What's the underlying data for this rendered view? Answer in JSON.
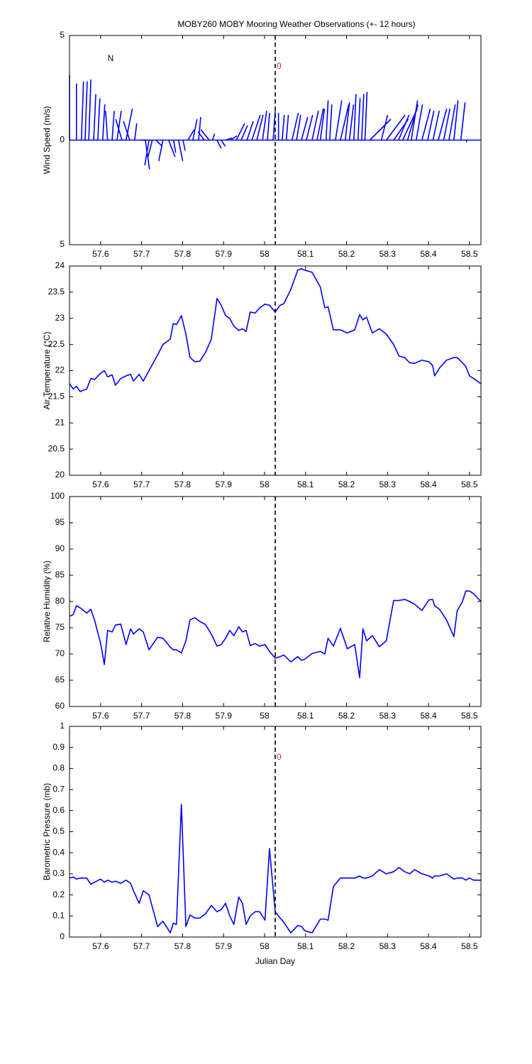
{
  "chart_data": [
    {
      "type": "stick",
      "title": "MOBY260 MOBY Mooring Weather Observations (+- 12 hours)",
      "ylabel": "Wind Speed (m/s)",
      "north_label": "N",
      "marker_label": "0",
      "vline": 58.026,
      "color": "#0000ff",
      "xlim": [
        57.524,
        58.528
      ],
      "xticks": [
        57.6,
        57.7,
        57.8,
        57.9,
        58,
        58.1,
        58.2,
        58.3,
        58.4,
        58.5
      ],
      "ylim": [
        -5,
        5
      ],
      "yticks": [
        {
          "value": -5,
          "label": "5"
        },
        0,
        5
      ],
      "x": [
        57.524,
        57.541,
        57.553,
        57.562,
        57.571,
        57.583,
        57.593,
        57.605,
        57.617,
        57.628,
        57.64,
        57.652,
        57.662,
        57.671,
        57.683,
        57.697,
        57.709,
        57.718,
        57.726,
        57.735,
        57.752,
        57.766,
        57.778,
        57.79,
        57.801,
        57.813,
        57.825,
        57.839,
        57.853,
        57.865,
        57.873,
        57.884,
        57.894,
        57.905,
        57.917,
        57.931,
        57.943,
        57.957,
        57.969,
        57.981,
        57.995,
        58.007,
        58.021,
        58.034,
        58.043,
        58.053,
        58.067,
        58.078,
        58.09,
        58.102,
        58.116,
        58.128,
        58.136,
        58.15,
        58.159,
        58.173,
        58.185,
        58.197,
        58.207,
        58.218,
        58.228,
        58.237,
        58.245,
        58.257,
        58.285,
        58.297,
        58.315,
        58.327,
        58.337,
        58.349,
        58.358,
        58.37,
        58.384,
        58.398,
        58.411,
        58.424,
        58.437,
        58.45,
        58.462,
        58.479,
        58.493
      ],
      "u": [
        0,
        0,
        0.1,
        0.1,
        0.1,
        0.1,
        0.1,
        0.1,
        -0.1,
        0.1,
        0.2,
        -0.3,
        0.3,
        -0.3,
        0.1,
        0.3,
        0.2,
        -0.2,
        -0.2,
        0.3,
        -0.2,
        0.3,
        0.1,
        0.2,
        0.1,
        0.3,
        0.2,
        0.1,
        -0.3,
        -0.4,
        0.1,
        0.2,
        0.2,
        0.3,
        0.3,
        0.4,
        0.3,
        0.3,
        0.4,
        0.3,
        0.2,
        0.1,
        0.1,
        0,
        0.1,
        0.1,
        0.3,
        0.2,
        0.3,
        0.3,
        0.3,
        0.3,
        0.2,
        0.1,
        0.1,
        0.3,
        0.4,
        0.2,
        0.2,
        0.1,
        0.1,
        0.1,
        0.1,
        1.0,
        0.3,
        0.9,
        0.7,
        0.5,
        0.7,
        0.5,
        0.3,
        0.3,
        0.4,
        0.3,
        0.3,
        0.4,
        0.3,
        0.3,
        0.2,
        0.2,
        0
      ],
      "v": [
        3.1,
        2.7,
        2.8,
        2.8,
        2.9,
        2.2,
        2.0,
        1.7,
        1.4,
        1.4,
        1.4,
        1.0,
        1.5,
        0.9,
        0.8,
        0,
        -1.4,
        -1.2,
        -0.8,
        -0.3,
        -1.0,
        -0.8,
        -0.6,
        -1.0,
        -0.5,
        0.5,
        1.0,
        1.1,
        0.4,
        0.5,
        0.3,
        -0.4,
        -0.3,
        0.1,
        0.2,
        0.8,
        0.7,
        0.9,
        1.2,
        1.2,
        1.4,
        1.3,
        1.4,
        1.3,
        1.2,
        1.2,
        1.3,
        1.2,
        1.1,
        1.2,
        1.4,
        1.5,
        1.5,
        1.9,
        1.7,
        1.9,
        1.7,
        1.8,
        1.7,
        2.2,
        2.0,
        2.2,
        2.3,
        1.0,
        1.2,
        1.2,
        1.0,
        1.2,
        1.5,
        1.7,
        1.9,
        1.7,
        1.5,
        1.4,
        1.4,
        1.5,
        1.5,
        1.7,
        1.9,
        1.8,
        -0.1
      ]
    },
    {
      "type": "line",
      "ylabel": "Air Temperature (°C)",
      "vline": 58.026,
      "color": "#0000ff",
      "xlim": [
        57.524,
        58.528
      ],
      "xticks": [
        57.6,
        57.7,
        57.8,
        57.9,
        58,
        58.1,
        58.2,
        58.3,
        58.4,
        58.5
      ],
      "ylim": [
        20,
        24
      ],
      "yticks": [
        20,
        20.5,
        21,
        21.5,
        22,
        22.5,
        23,
        23.5,
        24
      ],
      "x": [
        57.524,
        57.533,
        57.541,
        57.55,
        57.566,
        57.576,
        57.585,
        57.6,
        57.609,
        57.617,
        57.628,
        57.636,
        57.649,
        57.662,
        57.673,
        57.68,
        57.694,
        57.704,
        57.718,
        57.739,
        57.752,
        57.77,
        57.777,
        57.785,
        57.797,
        57.808,
        57.818,
        57.83,
        57.842,
        57.856,
        57.87,
        57.884,
        57.894,
        57.905,
        57.915,
        57.925,
        57.937,
        57.946,
        57.955,
        57.965,
        57.977,
        57.988,
        58.001,
        58.012,
        58.026,
        58.038,
        58.047,
        58.064,
        58.081,
        58.09,
        58.098,
        58.116,
        58.136,
        58.147,
        58.155,
        58.168,
        58.185,
        58.202,
        58.22,
        58.232,
        58.24,
        58.249,
        58.263,
        58.28,
        58.297,
        58.315,
        58.328,
        58.342,
        58.354,
        58.366,
        58.384,
        58.401,
        58.41,
        58.415,
        58.427,
        58.444,
        58.462,
        58.47,
        58.483,
        58.491,
        58.5,
        58.51,
        58.528
      ],
      "values": [
        21.75,
        21.65,
        21.7,
        21.6,
        21.65,
        21.85,
        21.83,
        21.95,
        22.0,
        21.88,
        21.92,
        21.72,
        21.85,
        21.9,
        21.93,
        21.8,
        21.93,
        21.8,
        22.0,
        22.3,
        22.5,
        22.6,
        22.9,
        22.88,
        23.05,
        22.7,
        22.25,
        22.17,
        22.18,
        22.35,
        22.6,
        23.38,
        23.25,
        23.05,
        23.0,
        22.85,
        22.77,
        22.8,
        22.75,
        23.12,
        23.1,
        23.2,
        23.27,
        23.25,
        23.12,
        23.25,
        23.28,
        23.55,
        23.92,
        23.95,
        23.92,
        23.88,
        23.6,
        23.2,
        23.22,
        22.78,
        22.78,
        22.72,
        22.78,
        23.07,
        22.97,
        23.02,
        22.72,
        22.8,
        22.7,
        22.5,
        22.28,
        22.25,
        22.15,
        22.14,
        22.2,
        22.17,
        22.1,
        21.9,
        22.05,
        22.2,
        22.25,
        22.25,
        22.15,
        22.08,
        21.9,
        21.85,
        21.75
      ]
    },
    {
      "type": "line",
      "ylabel": "Relative Humidity (%)",
      "vline": 58.026,
      "color": "#0000ff",
      "xlim": [
        57.524,
        58.528
      ],
      "xticks": [
        57.6,
        57.7,
        57.8,
        57.9,
        58,
        58.1,
        58.2,
        58.3,
        58.4,
        58.5
      ],
      "ylim": [
        60,
        100
      ],
      "yticks": [
        60,
        65,
        70,
        75,
        80,
        85,
        90,
        95,
        100
      ],
      "x": [
        57.524,
        57.533,
        57.541,
        57.55,
        57.566,
        57.576,
        57.585,
        57.6,
        57.609,
        57.617,
        57.628,
        57.636,
        57.649,
        57.662,
        57.673,
        57.68,
        57.694,
        57.704,
        57.718,
        57.739,
        57.752,
        57.77,
        57.777,
        57.785,
        57.797,
        57.808,
        57.818,
        57.83,
        57.842,
        57.856,
        57.87,
        57.884,
        57.894,
        57.905,
        57.915,
        57.925,
        57.937,
        57.946,
        57.955,
        57.965,
        57.977,
        57.988,
        58.001,
        58.012,
        58.026,
        58.038,
        58.047,
        58.064,
        58.081,
        58.09,
        58.098,
        58.116,
        58.136,
        58.147,
        58.155,
        58.168,
        58.185,
        58.202,
        58.22,
        58.232,
        58.24,
        58.249,
        58.263,
        58.28,
        58.297,
        58.315,
        58.328,
        58.342,
        58.354,
        58.366,
        58.384,
        58.401,
        58.41,
        58.415,
        58.427,
        58.444,
        58.462,
        58.47,
        58.483,
        58.491,
        58.5,
        58.51,
        58.528
      ],
      "values": [
        77.2,
        77.5,
        79.2,
        78.8,
        77.8,
        78.5,
        76.5,
        72,
        68,
        74.5,
        74.2,
        75.5,
        75.7,
        71.8,
        74.8,
        73.8,
        74.8,
        74.2,
        70.8,
        73.2,
        73.0,
        71.3,
        70.8,
        70.8,
        70.2,
        72.5,
        76.5,
        76.9,
        76.2,
        75.6,
        73.8,
        71.5,
        71.8,
        73.0,
        74.5,
        73.5,
        75.2,
        74.2,
        74.5,
        71.6,
        72.0,
        71.5,
        71.8,
        70.5,
        69.2,
        69.5,
        69.8,
        68.5,
        69.5,
        68.8,
        69.0,
        70.1,
        70.5,
        70.0,
        73.0,
        71.5,
        74.9,
        71.0,
        71.8,
        65.5,
        74.8,
        72.5,
        73.5,
        71.4,
        72.5,
        80.2,
        80.2,
        80.4,
        80.0,
        79.5,
        78.3,
        80.3,
        80.4,
        79.2,
        78.5,
        76.5,
        73.3,
        78.2,
        80.0,
        82.0,
        82.0,
        81.5,
        80.0
      ]
    },
    {
      "type": "line",
      "ylabel": "Barometric Pressure (mb)",
      "xlabel": "Julian Day",
      "marker_label": "0",
      "vline": 58.026,
      "color": "#0000ff",
      "xlim": [
        57.524,
        58.528
      ],
      "xticks": [
        57.6,
        57.7,
        57.8,
        57.9,
        58,
        58.1,
        58.2,
        58.3,
        58.4,
        58.5
      ],
      "ylim": [
        0,
        1
      ],
      "yticks": [
        0,
        0.1,
        0.2,
        0.3,
        0.4,
        0.5,
        0.6,
        0.7,
        0.8,
        0.9,
        1
      ],
      "x": [
        57.524,
        57.533,
        57.541,
        57.55,
        57.566,
        57.576,
        57.585,
        57.6,
        57.609,
        57.617,
        57.628,
        57.636,
        57.649,
        57.662,
        57.673,
        57.68,
        57.694,
        57.704,
        57.718,
        57.739,
        57.752,
        57.77,
        57.777,
        57.785,
        57.797,
        57.808,
        57.818,
        57.83,
        57.842,
        57.856,
        57.87,
        57.884,
        57.894,
        57.905,
        57.915,
        57.925,
        57.937,
        57.946,
        57.955,
        57.965,
        57.977,
        57.988,
        58.001,
        58.012,
        58.026,
        58.038,
        58.047,
        58.064,
        58.081,
        58.09,
        58.098,
        58.116,
        58.136,
        58.147,
        58.155,
        58.168,
        58.185,
        58.202,
        58.22,
        58.232,
        58.24,
        58.249,
        58.263,
        58.28,
        58.297,
        58.315,
        58.328,
        58.342,
        58.354,
        58.366,
        58.384,
        58.401,
        58.41,
        58.415,
        58.427,
        58.444,
        58.462,
        58.47,
        58.483,
        58.491,
        58.5,
        58.51,
        58.528
      ],
      "values": [
        0.28,
        0.285,
        0.275,
        0.28,
        0.28,
        0.25,
        0.26,
        0.275,
        0.26,
        0.27,
        0.26,
        0.265,
        0.255,
        0.27,
        0.255,
        0.22,
        0.16,
        0.22,
        0.2,
        0.05,
        0.075,
        0.02,
        0.065,
        0.06,
        0.63,
        0.05,
        0.105,
        0.09,
        0.09,
        0.11,
        0.15,
        0.12,
        0.13,
        0.16,
        0.1,
        0.06,
        0.19,
        0.16,
        0.06,
        0.1,
        0.12,
        0.12,
        0.08,
        0.42,
        0.12,
        0.09,
        0.07,
        0.02,
        0.055,
        0.05,
        0.03,
        0.02,
        0.085,
        0.085,
        0.08,
        0.24,
        0.28,
        0.28,
        0.28,
        0.29,
        0.28,
        0.28,
        0.29,
        0.32,
        0.3,
        0.31,
        0.33,
        0.31,
        0.3,
        0.32,
        0.3,
        0.29,
        0.28,
        0.29,
        0.29,
        0.3,
        0.275,
        0.28,
        0.28,
        0.27,
        0.28,
        0.27,
        0.27
      ]
    }
  ]
}
